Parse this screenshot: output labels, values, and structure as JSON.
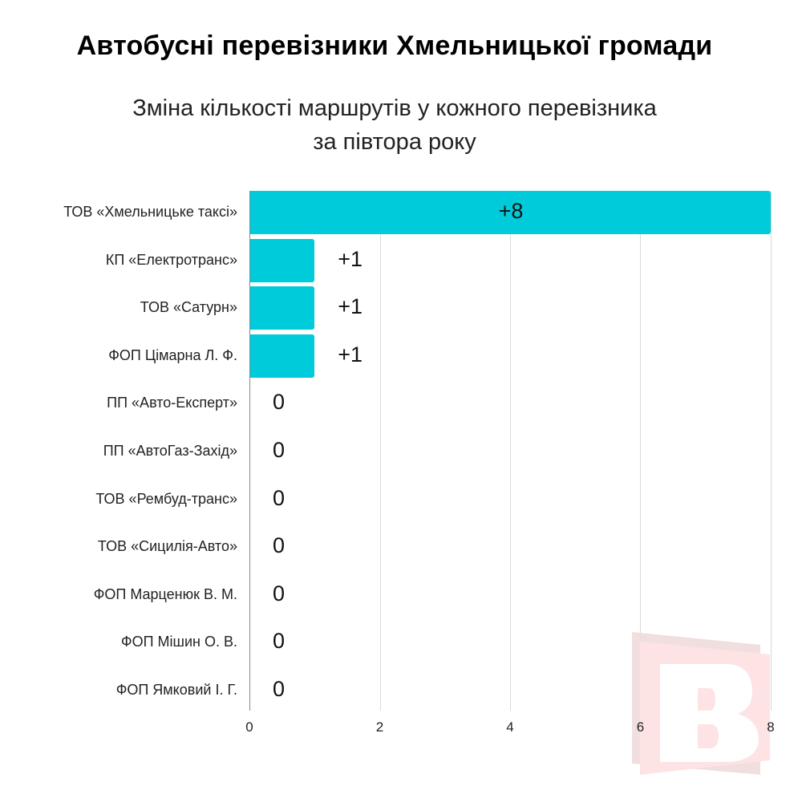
{
  "header": {
    "title": "Автобусні перевізники Хмельницької громади",
    "subtitle_line1": "Зміна кількості маршрутів у кожного перевізника",
    "subtitle_line2": "за півтора року"
  },
  "colors": {
    "bar": "#00cbdb",
    "grid": "#d9d9d9",
    "axis": "#888888",
    "watermark": "#fde3e4"
  },
  "chart_data": {
    "type": "bar",
    "orientation": "horizontal",
    "title": "Автобусні перевізники Хмельницької громади",
    "subtitle": "Зміна кількості маршрутів у кожного перевізника за півтора року",
    "categories": [
      "ТОВ «Хмельницьке таксі»",
      "КП «Електротранс»",
      "ТОВ «Сатурн»",
      "ФОП Цімарна Л. Ф.",
      "ПП «Авто-Експерт»",
      "ПП «АвтоГаз-Захід»",
      "ТОВ «Рембуд-транс»",
      "ТОВ «Сицилія-Авто»",
      "ФОП Марценюк В. М.",
      "ФОП Мішин О. В.",
      "ФОП Ямковий І. Г."
    ],
    "values": [
      8,
      1,
      1,
      1,
      0,
      0,
      0,
      0,
      0,
      0,
      0
    ],
    "data_labels": [
      "+8",
      "+1",
      "+1",
      "+1",
      "0",
      "0",
      "0",
      "0",
      "0",
      "0",
      "0"
    ],
    "xlabel": "",
    "ylabel": "",
    "xlim": [
      0,
      8
    ],
    "xticks": [
      "0",
      "2",
      "4",
      "6",
      "8"
    ],
    "grid": true,
    "legend": "none"
  },
  "watermark": {
    "letter": "B"
  }
}
